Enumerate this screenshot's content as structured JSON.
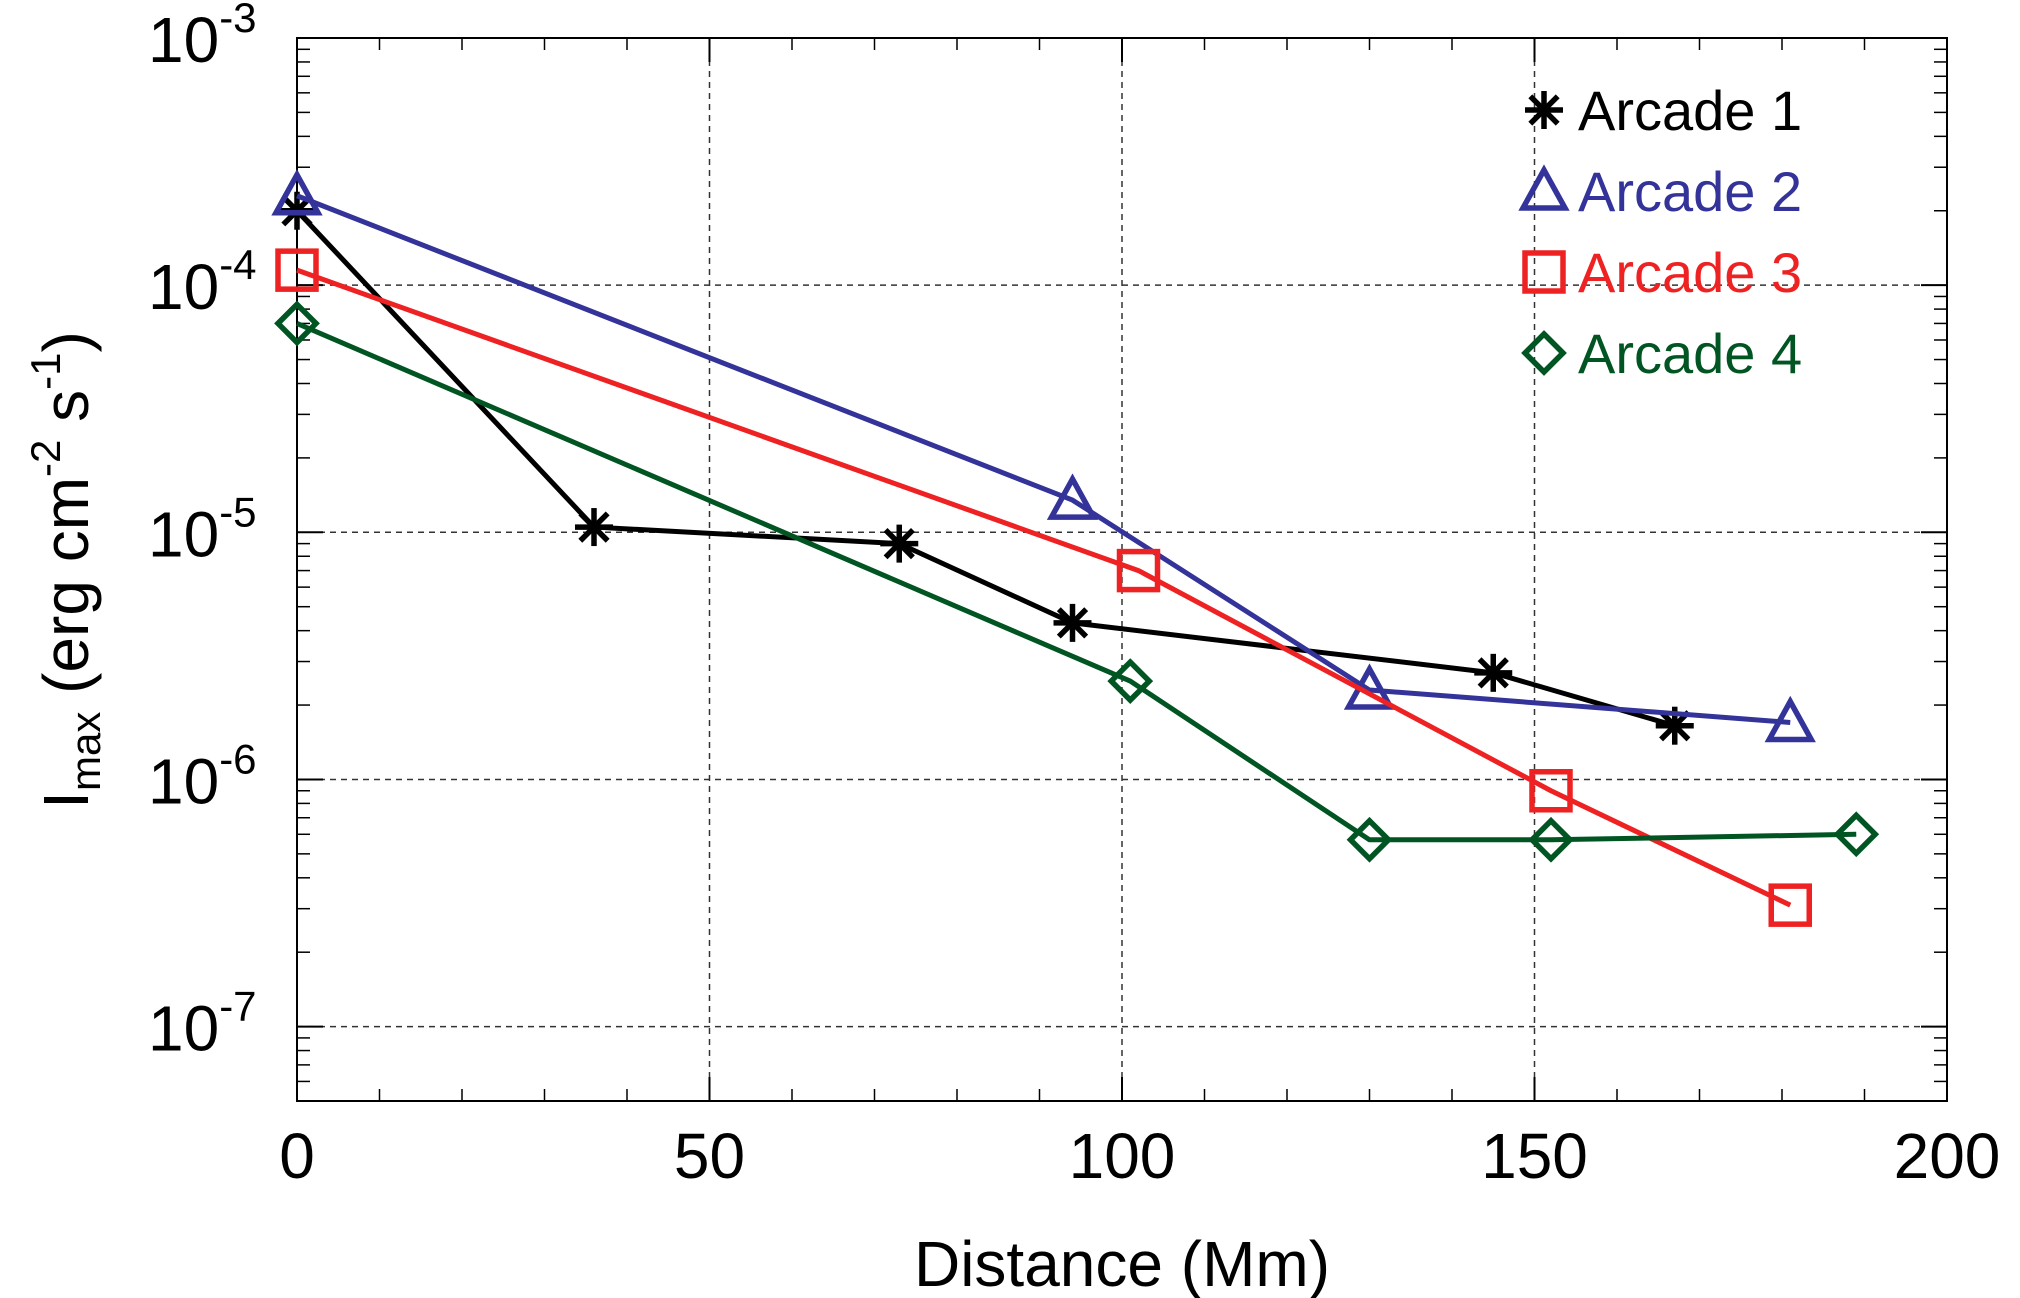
{
  "chart_data": {
    "type": "line",
    "xlabel": "Distance (Mm)",
    "ylabel_main": "I",
    "ylabel_sub": "max",
    "ylabel_units": " (erg cm",
    "ylabel_exp1": "-2",
    "ylabel_mid": " s",
    "ylabel_exp2": "-1",
    "ylabel_end": ")",
    "xlim": [
      0,
      200
    ],
    "ylim": [
      5e-08,
      0.001
    ],
    "yscale": "log",
    "xticks": [
      {
        "value": 0,
        "label": "0"
      },
      {
        "value": 50,
        "label": "50"
      },
      {
        "value": 100,
        "label": "100"
      },
      {
        "value": 150,
        "label": "150"
      },
      {
        "value": 200,
        "label": "200"
      }
    ],
    "yticks": [
      {
        "value": 0.001,
        "base": "10",
        "exp": "-3"
      },
      {
        "value": 0.0001,
        "base": "10",
        "exp": "-4"
      },
      {
        "value": 1e-05,
        "base": "10",
        "exp": "-5"
      },
      {
        "value": 1e-06,
        "base": "10",
        "exp": "-6"
      },
      {
        "value": 1e-07,
        "base": "10",
        "exp": "-7"
      }
    ],
    "grid": true,
    "legend_position": "top-right",
    "series": [
      {
        "name": "Arcade 1",
        "color": "#000000",
        "marker": "asterisk",
        "x": [
          0,
          36,
          73,
          94,
          145,
          167
        ],
        "y": [
          0.0002,
          1.05e-05,
          9e-06,
          4.3e-06,
          2.7e-06,
          1.65e-06
        ]
      },
      {
        "name": "Arcade 2",
        "color": "#333399",
        "marker": "triangle",
        "x": [
          0,
          94,
          130,
          181
        ],
        "y": [
          0.00023,
          1.35e-05,
          2.3e-06,
          1.7e-06
        ]
      },
      {
        "name": "Arcade 3",
        "color": "#ee2222",
        "marker": "square",
        "x": [
          0,
          102,
          152,
          181
        ],
        "y": [
          0.000115,
          7e-06,
          9e-07,
          3.1e-07
        ]
      },
      {
        "name": "Arcade 4",
        "color": "#005522",
        "marker": "diamond",
        "x": [
          0,
          101,
          130,
          152,
          189
        ],
        "y": [
          7e-05,
          2.5e-06,
          5.7e-07,
          5.7e-07,
          6e-07
        ]
      }
    ]
  }
}
